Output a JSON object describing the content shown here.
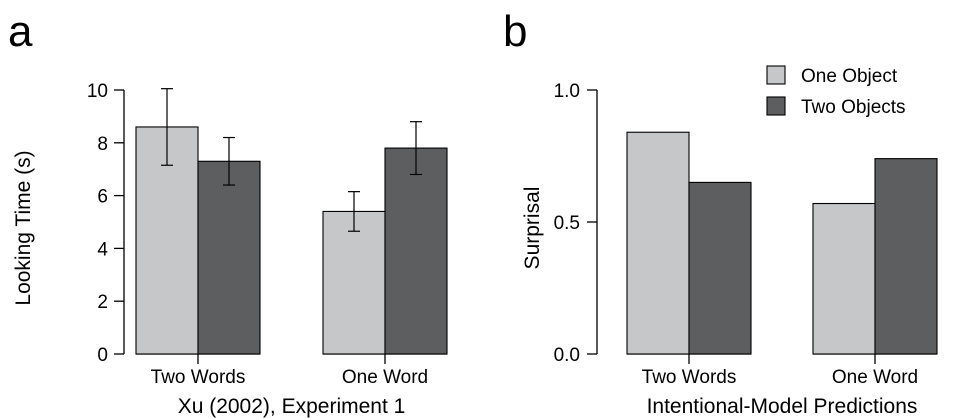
{
  "chart_data": [
    {
      "type": "bar",
      "panel_label": "a",
      "title": "",
      "xlabel": "Xu (2002), Experiment 1",
      "ylabel": "Looking Time (s)",
      "categories": [
        "Two Words",
        "One Word"
      ],
      "ylim": [
        0,
        10
      ],
      "yticks": [
        "0",
        "2",
        "4",
        "6",
        "8",
        "10"
      ],
      "grid": false,
      "series": [
        {
          "name": "One Object",
          "values": [
            8.6,
            5.4
          ],
          "error_low": [
            7.15,
            4.65
          ],
          "error_high": [
            10.05,
            6.15
          ],
          "color": "#c6c7c9"
        },
        {
          "name": "Two Objects",
          "values": [
            7.3,
            7.8
          ],
          "error_low": [
            6.4,
            6.8
          ],
          "error_high": [
            8.2,
            8.8
          ],
          "color": "#5d5e60"
        }
      ]
    },
    {
      "type": "bar",
      "panel_label": "b",
      "title": "",
      "xlabel": "Intentional-Model Predictions",
      "ylabel": "Surprisal",
      "categories": [
        "Two Words",
        "One Word"
      ],
      "ylim": [
        0,
        1
      ],
      "yticks": [
        "0.0",
        "0.5",
        "1.0"
      ],
      "grid": false,
      "legend": {
        "placement": "top-right",
        "entries": [
          "One Object",
          "Two Objects"
        ]
      },
      "series": [
        {
          "name": "One Object",
          "values": [
            0.84,
            0.57
          ],
          "color": "#c6c7c9"
        },
        {
          "name": "Two Objects",
          "values": [
            0.65,
            0.74
          ],
          "color": "#5d5e60"
        }
      ]
    }
  ]
}
